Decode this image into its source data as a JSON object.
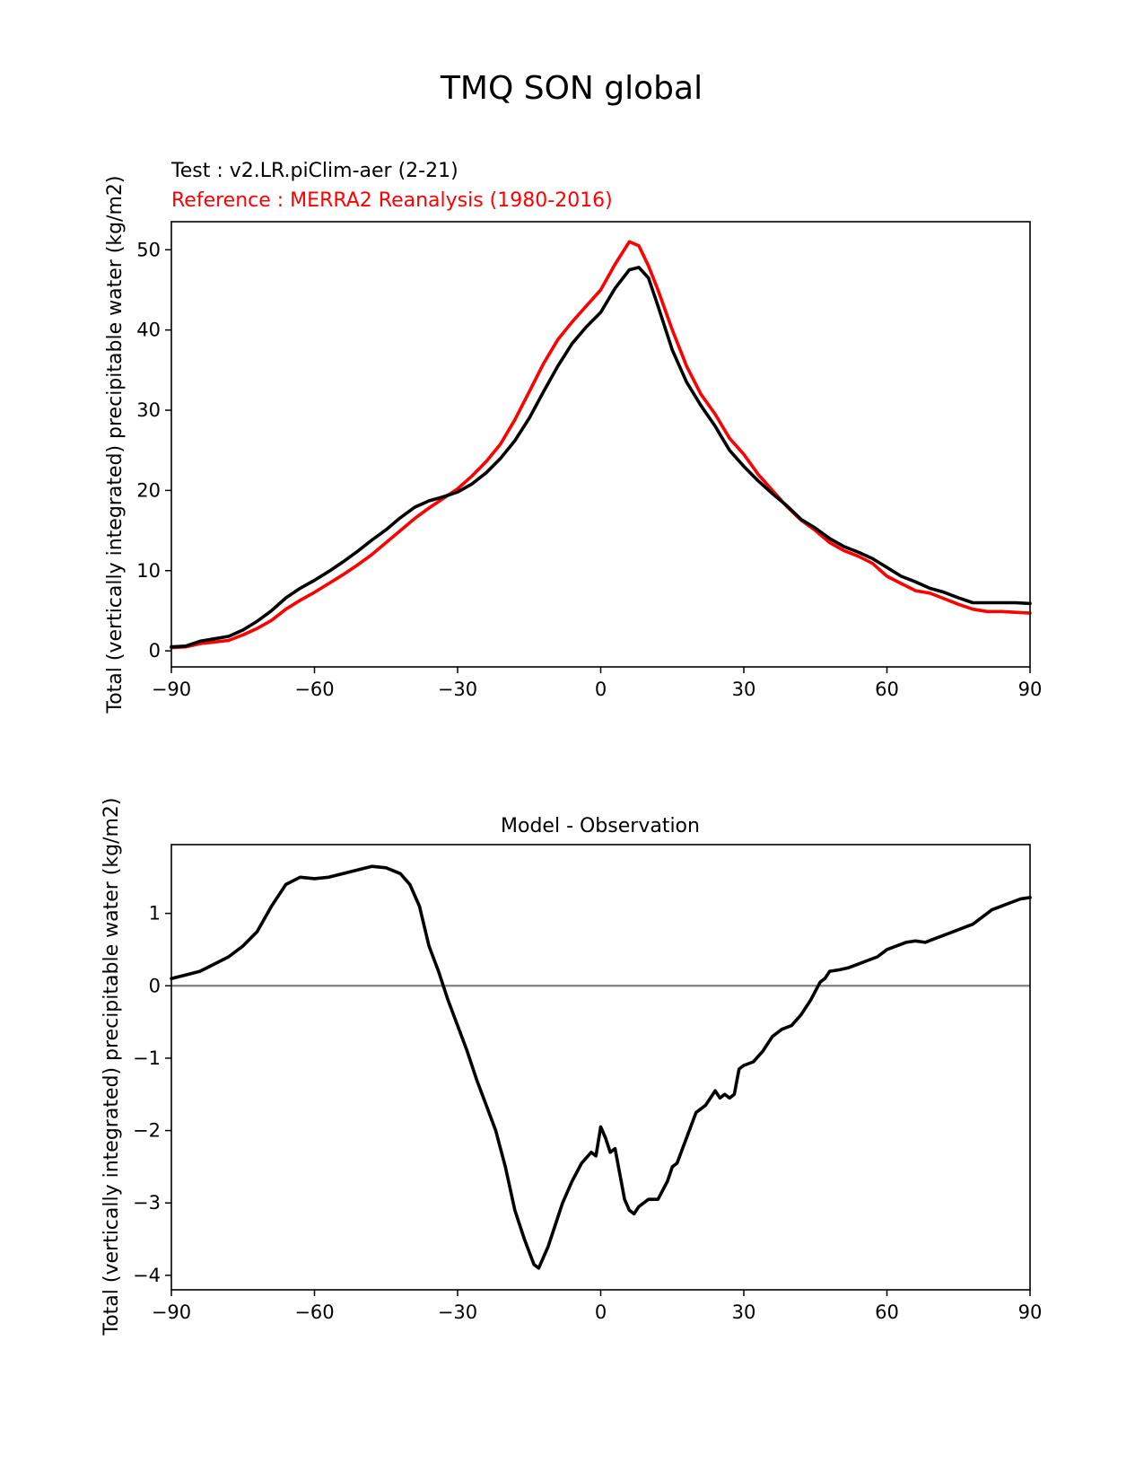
{
  "figure": {
    "title": "TMQ SON global"
  },
  "chart_data": [
    {
      "type": "line",
      "title": "",
      "subtitle_test": "Test : v2.LR.piClim-aer (2-21)",
      "subtitle_reference": "Reference : MERRA2 Reanalysis (1980-2016)",
      "xlabel": "",
      "ylabel": "Total (vertically integrated) precipitable water (kg/m2)",
      "xlim": [
        -90,
        90
      ],
      "ylim": [
        -2,
        53.5
      ],
      "xticks": [
        -90,
        -60,
        -30,
        0,
        30,
        60,
        90
      ],
      "xtick_labels": [
        "−90",
        "−60",
        "−30",
        "0",
        "30",
        "60",
        "90"
      ],
      "yticks": [
        0,
        10,
        20,
        30,
        40,
        50
      ],
      "ytick_labels": [
        "0",
        "10",
        "20",
        "30",
        "40",
        "50"
      ],
      "grid": false,
      "series": [
        {
          "color": "#ff0000",
          "x": [
            -90,
            -87,
            -84,
            -81,
            -78,
            -75,
            -72,
            -69,
            -66,
            -63,
            -60,
            -57,
            -54,
            -51,
            -48,
            -45,
            -42,
            -39,
            -36,
            -33,
            -30,
            -27,
            -24,
            -21,
            -18,
            -15,
            -12,
            -9,
            -6,
            -3,
            0,
            3,
            6,
            8,
            10,
            12,
            15,
            18,
            21,
            24,
            27,
            30,
            33,
            36,
            39,
            42,
            45,
            48,
            51,
            54,
            57,
            60,
            63,
            66,
            69,
            72,
            75,
            78,
            81,
            84,
            87,
            90
          ],
          "y": [
            0.4,
            0.5,
            0.9,
            1.1,
            1.3,
            2.0,
            2.8,
            3.8,
            5.2,
            6.3,
            7.3,
            8.4,
            9.5,
            10.7,
            12.0,
            13.5,
            15.0,
            16.5,
            17.8,
            19.0,
            20.2,
            21.8,
            23.6,
            25.8,
            28.8,
            32.3,
            35.8,
            38.8,
            41.0,
            43.0,
            45.0,
            48.2,
            51.0,
            50.5,
            48.0,
            45.0,
            40.0,
            35.5,
            32.0,
            29.5,
            26.5,
            24.5,
            22.0,
            20.0,
            18.0,
            16.3,
            15.0,
            13.5,
            12.5,
            11.8,
            10.9,
            9.3,
            8.4,
            7.5,
            7.2,
            6.5,
            5.8,
            5.2,
            4.9,
            4.9,
            4.8,
            4.7
          ]
        },
        {
          "color": "#000000",
          "x": [
            -90,
            -87,
            -84,
            -81,
            -78,
            -75,
            -72,
            -69,
            -66,
            -63,
            -60,
            -57,
            -54,
            -51,
            -48,
            -45,
            -42,
            -39,
            -36,
            -33,
            -30,
            -27,
            -24,
            -21,
            -18,
            -15,
            -12,
            -9,
            -6,
            -3,
            0,
            3,
            6,
            8,
            10,
            12,
            15,
            18,
            21,
            24,
            27,
            30,
            33,
            36,
            39,
            42,
            45,
            48,
            51,
            54,
            57,
            60,
            63,
            66,
            69,
            72,
            75,
            78,
            81,
            84,
            87,
            90
          ],
          "y": [
            0.5,
            0.6,
            1.2,
            1.5,
            1.8,
            2.6,
            3.7,
            5.0,
            6.6,
            7.8,
            8.8,
            9.9,
            11.1,
            12.4,
            13.8,
            15.1,
            16.6,
            17.9,
            18.7,
            19.2,
            19.8,
            20.8,
            22.2,
            24.0,
            26.2,
            29.0,
            32.3,
            35.5,
            38.3,
            40.4,
            42.2,
            45.2,
            47.5,
            47.8,
            46.5,
            43.0,
            37.5,
            33.5,
            30.6,
            28.0,
            25.0,
            23.0,
            21.2,
            19.6,
            18.1,
            16.4,
            15.3,
            14.0,
            13.0,
            12.3,
            11.5,
            10.4,
            9.3,
            8.6,
            7.8,
            7.3,
            6.6,
            6.0,
            6.0,
            6.0,
            6.0,
            5.9
          ]
        }
      ]
    },
    {
      "type": "line",
      "title": "Model - Observation",
      "xlabel": "",
      "ylabel": "Total (vertically integrated) precipitable water (kg/m2)",
      "xlim": [
        -90,
        90
      ],
      "ylim": [
        -4.2,
        1.95
      ],
      "xticks": [
        -90,
        -60,
        -30,
        0,
        30,
        60,
        90
      ],
      "xtick_labels": [
        "−90",
        "−60",
        "−30",
        "0",
        "30",
        "60",
        "90"
      ],
      "yticks": [
        1,
        0,
        -1,
        -2,
        -3,
        -4
      ],
      "ytick_labels": [
        "1",
        "0",
        "−1",
        "−2",
        "−3",
        "−4"
      ],
      "grid": false,
      "zero_line_color": "#808080",
      "series": [
        {
          "color": "#000000",
          "x": [
            -90,
            -87,
            -84,
            -81,
            -78,
            -75,
            -72,
            -69,
            -66,
            -63,
            -60,
            -57,
            -54,
            -51,
            -48,
            -45,
            -42,
            -40,
            -38,
            -36,
            -34,
            -32,
            -30,
            -28,
            -26,
            -24,
            -22,
            -20,
            -18,
            -16,
            -14,
            -13,
            -12,
            -11,
            -10,
            -8,
            -6,
            -4,
            -2,
            -1,
            0,
            1,
            2,
            3,
            4,
            5,
            6,
            7,
            8,
            10,
            12,
            14,
            15,
            16,
            18,
            20,
            22,
            24,
            25,
            26,
            27,
            28,
            29,
            30,
            32,
            34,
            36,
            38,
            40,
            42,
            44,
            46,
            47,
            48,
            50,
            52,
            54,
            56,
            58,
            60,
            62,
            64,
            66,
            68,
            70,
            72,
            74,
            76,
            78,
            80,
            82,
            84,
            86,
            88,
            90
          ],
          "y": [
            0.1,
            0.15,
            0.2,
            0.3,
            0.4,
            0.55,
            0.75,
            1.1,
            1.4,
            1.5,
            1.48,
            1.5,
            1.55,
            1.6,
            1.65,
            1.63,
            1.55,
            1.4,
            1.1,
            0.55,
            0.2,
            -0.2,
            -0.55,
            -0.9,
            -1.3,
            -1.65,
            -2.0,
            -2.5,
            -3.1,
            -3.5,
            -3.85,
            -3.9,
            -3.75,
            -3.6,
            -3.4,
            -3.0,
            -2.7,
            -2.45,
            -2.3,
            -2.35,
            -1.95,
            -2.1,
            -2.3,
            -2.25,
            -2.6,
            -2.95,
            -3.1,
            -3.15,
            -3.05,
            -2.95,
            -2.95,
            -2.7,
            -2.5,
            -2.45,
            -2.1,
            -1.75,
            -1.65,
            -1.45,
            -1.55,
            -1.5,
            -1.55,
            -1.5,
            -1.15,
            -1.1,
            -1.05,
            -0.9,
            -0.7,
            -0.6,
            -0.55,
            -0.4,
            -0.2,
            0.05,
            0.1,
            0.2,
            0.22,
            0.25,
            0.3,
            0.35,
            0.4,
            0.5,
            0.55,
            0.6,
            0.62,
            0.6,
            0.65,
            0.7,
            0.75,
            0.8,
            0.85,
            0.95,
            1.05,
            1.1,
            1.15,
            1.2,
            1.22
          ]
        }
      ]
    }
  ]
}
